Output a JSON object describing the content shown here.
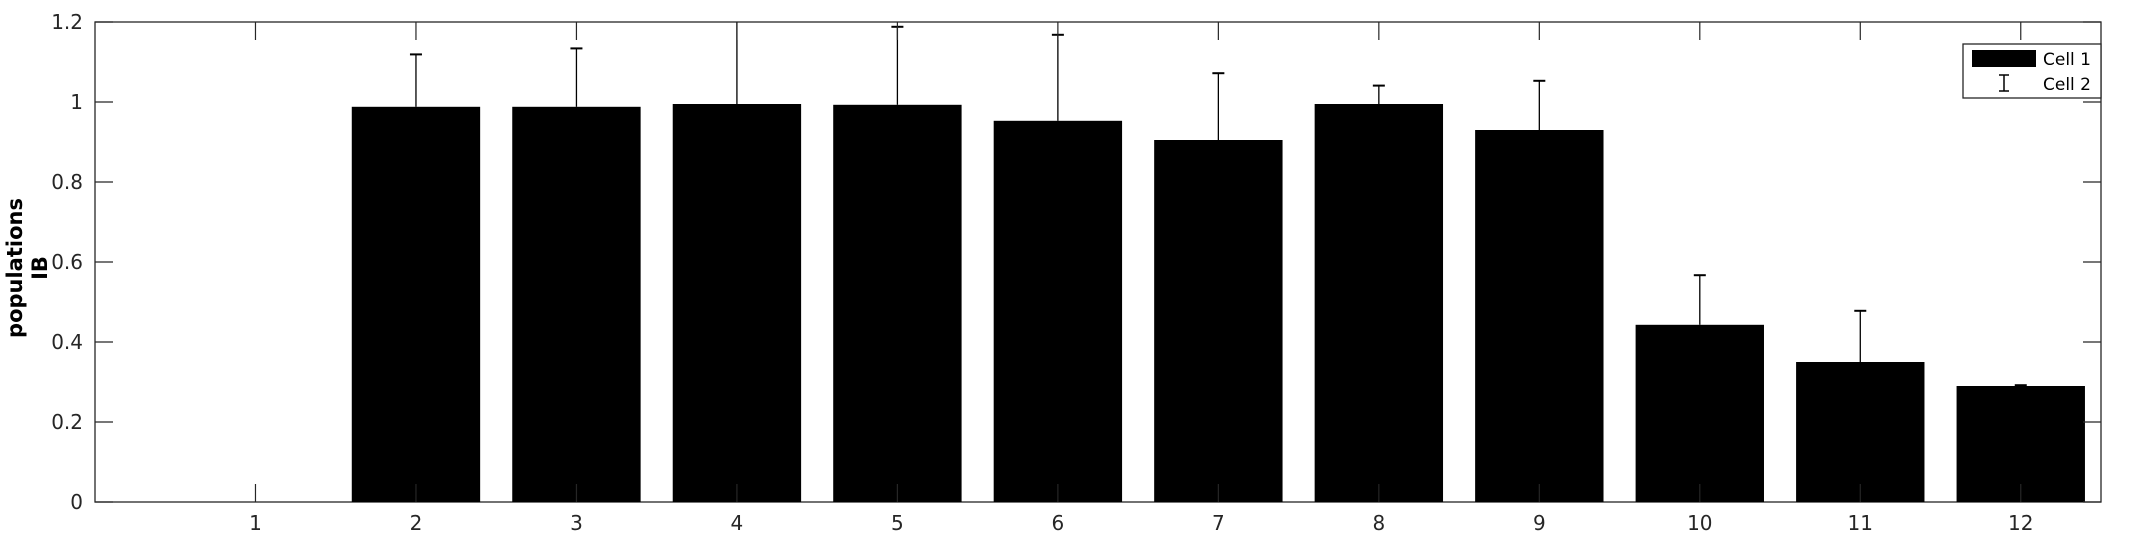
{
  "chart_data": {
    "type": "bar",
    "categories": [
      "1",
      "2",
      "3",
      "4",
      "5",
      "6",
      "7",
      "8",
      "9",
      "10",
      "11",
      "12"
    ],
    "series": [
      {
        "name": "Cell 1",
        "values": [
          0,
          0.988,
          0.988,
          0.995,
          0.993,
          0.953,
          0.905,
          0.995,
          0.93,
          0.443,
          0.35,
          0.29
        ]
      },
      {
        "name": "Cell 2",
        "values": [
          0,
          0.131,
          0.146,
          0.265,
          0.195,
          0.215,
          0.167,
          0.046,
          0.123,
          0.124,
          0.128,
          0.002
        ]
      }
    ],
    "xlabel": "",
    "ylabel_lines": [
      "populations",
      "IB"
    ],
    "ylim": [
      0,
      1.2
    ],
    "yticks": [
      "0",
      "0.2",
      "0.4",
      "0.6",
      "0.8",
      "1",
      "1.2"
    ],
    "grid": false,
    "legend": {
      "placement": "top-right",
      "entries": [
        {
          "label": "Cell 1",
          "symbol": "bar"
        },
        {
          "label": "Cell 2",
          "symbol": "errorbar"
        }
      ]
    },
    "colors": {
      "bar": "#000000",
      "errorbar": "#000000",
      "axis": "#262626"
    }
  }
}
